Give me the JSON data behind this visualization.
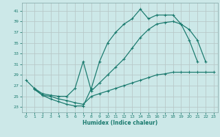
{
  "xlabel": "Humidex (Indice chaleur)",
  "bg_color": "#cce8e8",
  "grid_color": "#d0d8d8",
  "line_color": "#1a7a6e",
  "xlim": [
    -0.5,
    23.5
  ],
  "ylim": [
    22,
    42.5
  ],
  "yticks": [
    23,
    25,
    27,
    29,
    31,
    33,
    35,
    37,
    39,
    41
  ],
  "xticks": [
    0,
    1,
    2,
    3,
    4,
    5,
    6,
    7,
    8,
    9,
    10,
    11,
    12,
    13,
    14,
    15,
    16,
    17,
    18,
    19,
    20,
    21,
    22,
    23
  ],
  "line1_x": [
    0,
    1,
    2,
    3,
    4,
    5,
    6,
    7,
    8,
    9,
    10,
    11,
    12,
    13,
    14,
    15,
    16,
    17,
    18,
    19,
    20,
    21
  ],
  "line1_y": [
    28,
    26.5,
    25.2,
    24.5,
    24.0,
    23.5,
    23.2,
    23.2,
    26.5,
    31.5,
    35.0,
    37.0,
    38.5,
    39.5,
    41.3,
    39.5,
    40.2,
    40.2,
    40.2,
    38.5,
    35.5,
    31.5
  ],
  "line2_x": [
    1,
    2,
    3,
    4,
    5,
    6,
    7,
    8,
    9,
    10,
    11,
    12,
    13,
    14,
    15,
    16,
    17,
    18,
    19,
    20,
    21,
    22
  ],
  "line2_y": [
    26.5,
    25.5,
    25.2,
    25.0,
    25.0,
    26.5,
    31.5,
    26.0,
    27.5,
    29.0,
    30.5,
    32.0,
    34.0,
    36.0,
    37.5,
    38.5,
    38.8,
    39.0,
    38.5,
    37.5,
    35.5,
    31.5
  ],
  "line3_x": [
    1,
    2,
    3,
    4,
    5,
    6,
    7,
    8,
    9,
    10,
    11,
    12,
    13,
    14,
    15,
    16,
    17,
    18,
    19,
    20,
    21,
    22,
    23
  ],
  "line3_y": [
    26.3,
    25.2,
    25.0,
    24.5,
    24.2,
    23.8,
    23.5,
    25.0,
    25.5,
    26.0,
    26.5,
    27.0,
    27.5,
    28.0,
    28.5,
    29.0,
    29.2,
    29.5,
    29.5,
    29.5,
    29.5,
    29.5,
    29.5
  ]
}
